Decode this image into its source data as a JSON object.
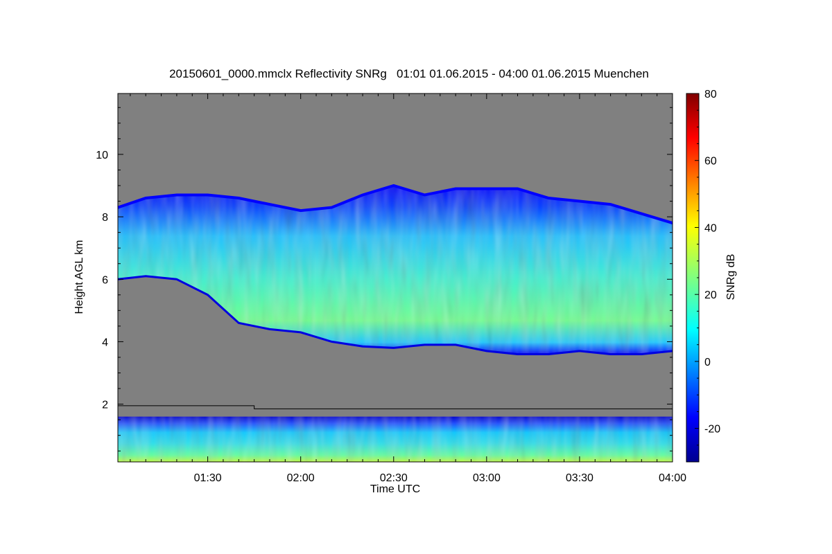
{
  "chart_data": {
    "type": "heatmap",
    "title": "20150601_0000.mmclx Reflectivity SNRg   01:01 01.06.2015 - 04:00 01.06.2015 Muenchen",
    "xlabel": "Time UTC",
    "ylabel": "Height AGL km",
    "colorbar_label": "SNRg dB",
    "x_ticks": [
      {
        "minutes": 90,
        "label": "01:30"
      },
      {
        "minutes": 120,
        "label": "02:00"
      },
      {
        "minutes": 150,
        "label": "02:30"
      },
      {
        "minutes": 180,
        "label": "03:00"
      },
      {
        "minutes": 210,
        "label": "03:30"
      },
      {
        "minutes": 240,
        "label": "04:00"
      }
    ],
    "y_ticks": [
      {
        "km": 2,
        "label": "2"
      },
      {
        "km": 4,
        "label": "4"
      },
      {
        "km": 6,
        "label": "6"
      },
      {
        "km": 8,
        "label": "8"
      },
      {
        "km": 10,
        "label": "10"
      }
    ],
    "colorbar_ticks": [
      {
        "db": -20,
        "label": "-20"
      },
      {
        "db": 0,
        "label": "0"
      },
      {
        "db": 20,
        "label": "20"
      },
      {
        "db": 40,
        "label": "40"
      },
      {
        "db": 60,
        "label": "60"
      },
      {
        "db": 80,
        "label": "80"
      }
    ],
    "xlim_minutes": [
      61,
      240
    ],
    "ylim_km": [
      0.15,
      11.95
    ],
    "clim_db": [
      -30,
      80
    ],
    "colormap": "jet",
    "no_data_color": "#808080",
    "cloud_upper_layer": {
      "time_minutes": [
        61,
        70,
        80,
        90,
        100,
        110,
        120,
        130,
        140,
        150,
        160,
        170,
        180,
        190,
        200,
        210,
        220,
        230,
        240
      ],
      "top_km": [
        8.3,
        8.6,
        8.7,
        8.7,
        8.6,
        8.4,
        8.2,
        8.3,
        8.7,
        9.0,
        8.7,
        8.9,
        8.9,
        8.9,
        8.6,
        8.5,
        8.4,
        8.1,
        7.8
      ],
      "base_km": [
        6.0,
        6.1,
        6.0,
        5.5,
        4.6,
        4.4,
        4.3,
        4.0,
        3.85,
        3.8,
        3.9,
        3.9,
        3.7,
        3.6,
        3.6,
        3.7,
        3.6,
        3.6,
        3.7
      ]
    },
    "boundary_layer_top_km": [
      {
        "from_minutes": 61,
        "to_minutes": 105,
        "km": 1.95
      },
      {
        "from_minutes": 105,
        "to_minutes": 240,
        "km": 1.85
      }
    ],
    "boundary_layer_echo_top_km": 1.6,
    "grid": false,
    "colorbar_position": "right"
  }
}
